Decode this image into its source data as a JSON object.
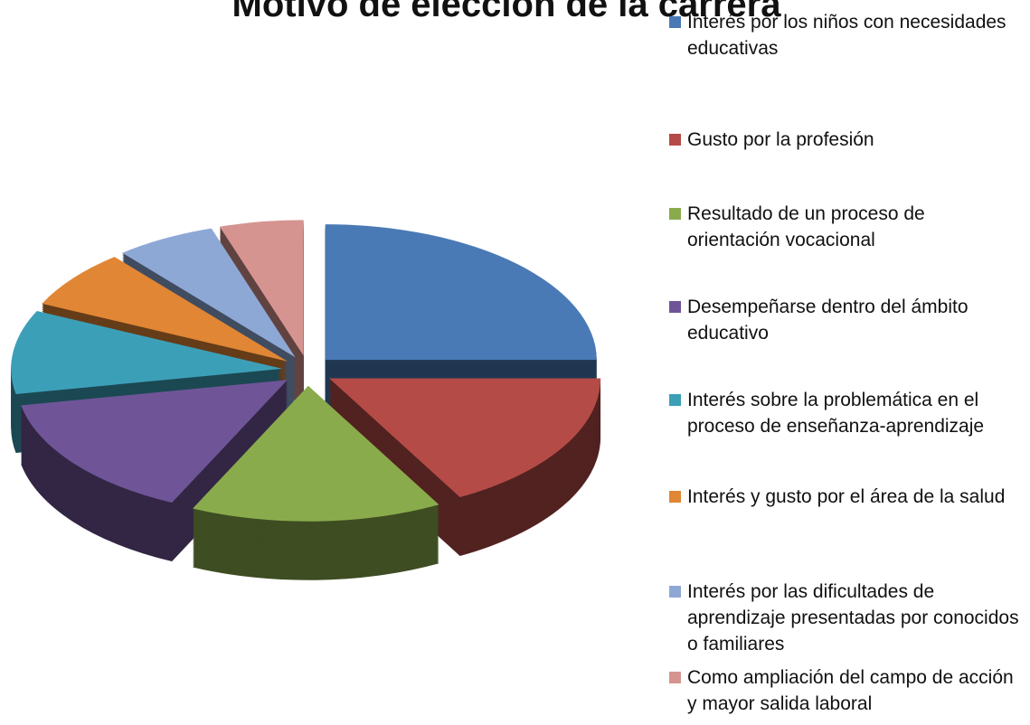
{
  "chart_data": {
    "type": "pie3d",
    "title": "Motivo de elección de la carrera",
    "categories": [
      "Interés por los niños con necesidades educativas",
      "Gusto por la profesión",
      "Resultado de un proceso de orientación vocacional",
      "Desempeñarse dentro del ámbito educativo",
      "Interés sobre la problemática en el proceso de enseñanza-aprendizaje",
      "Interés y gusto por el área de la salud",
      "Interés por las dificultades de aprendizaje presentadas por conocidos o familiares",
      "Como ampliación del campo de acción y mayor salida laboral"
    ],
    "values": [
      25,
      17,
      15,
      15,
      10,
      7,
      6,
      5
    ],
    "colors": [
      "#4a7ab5",
      "#b44b47",
      "#8aab4c",
      "#6f5597",
      "#3c9fb8",
      "#e08635",
      "#8ea8d6",
      "#d69490"
    ],
    "legend": "right"
  }
}
